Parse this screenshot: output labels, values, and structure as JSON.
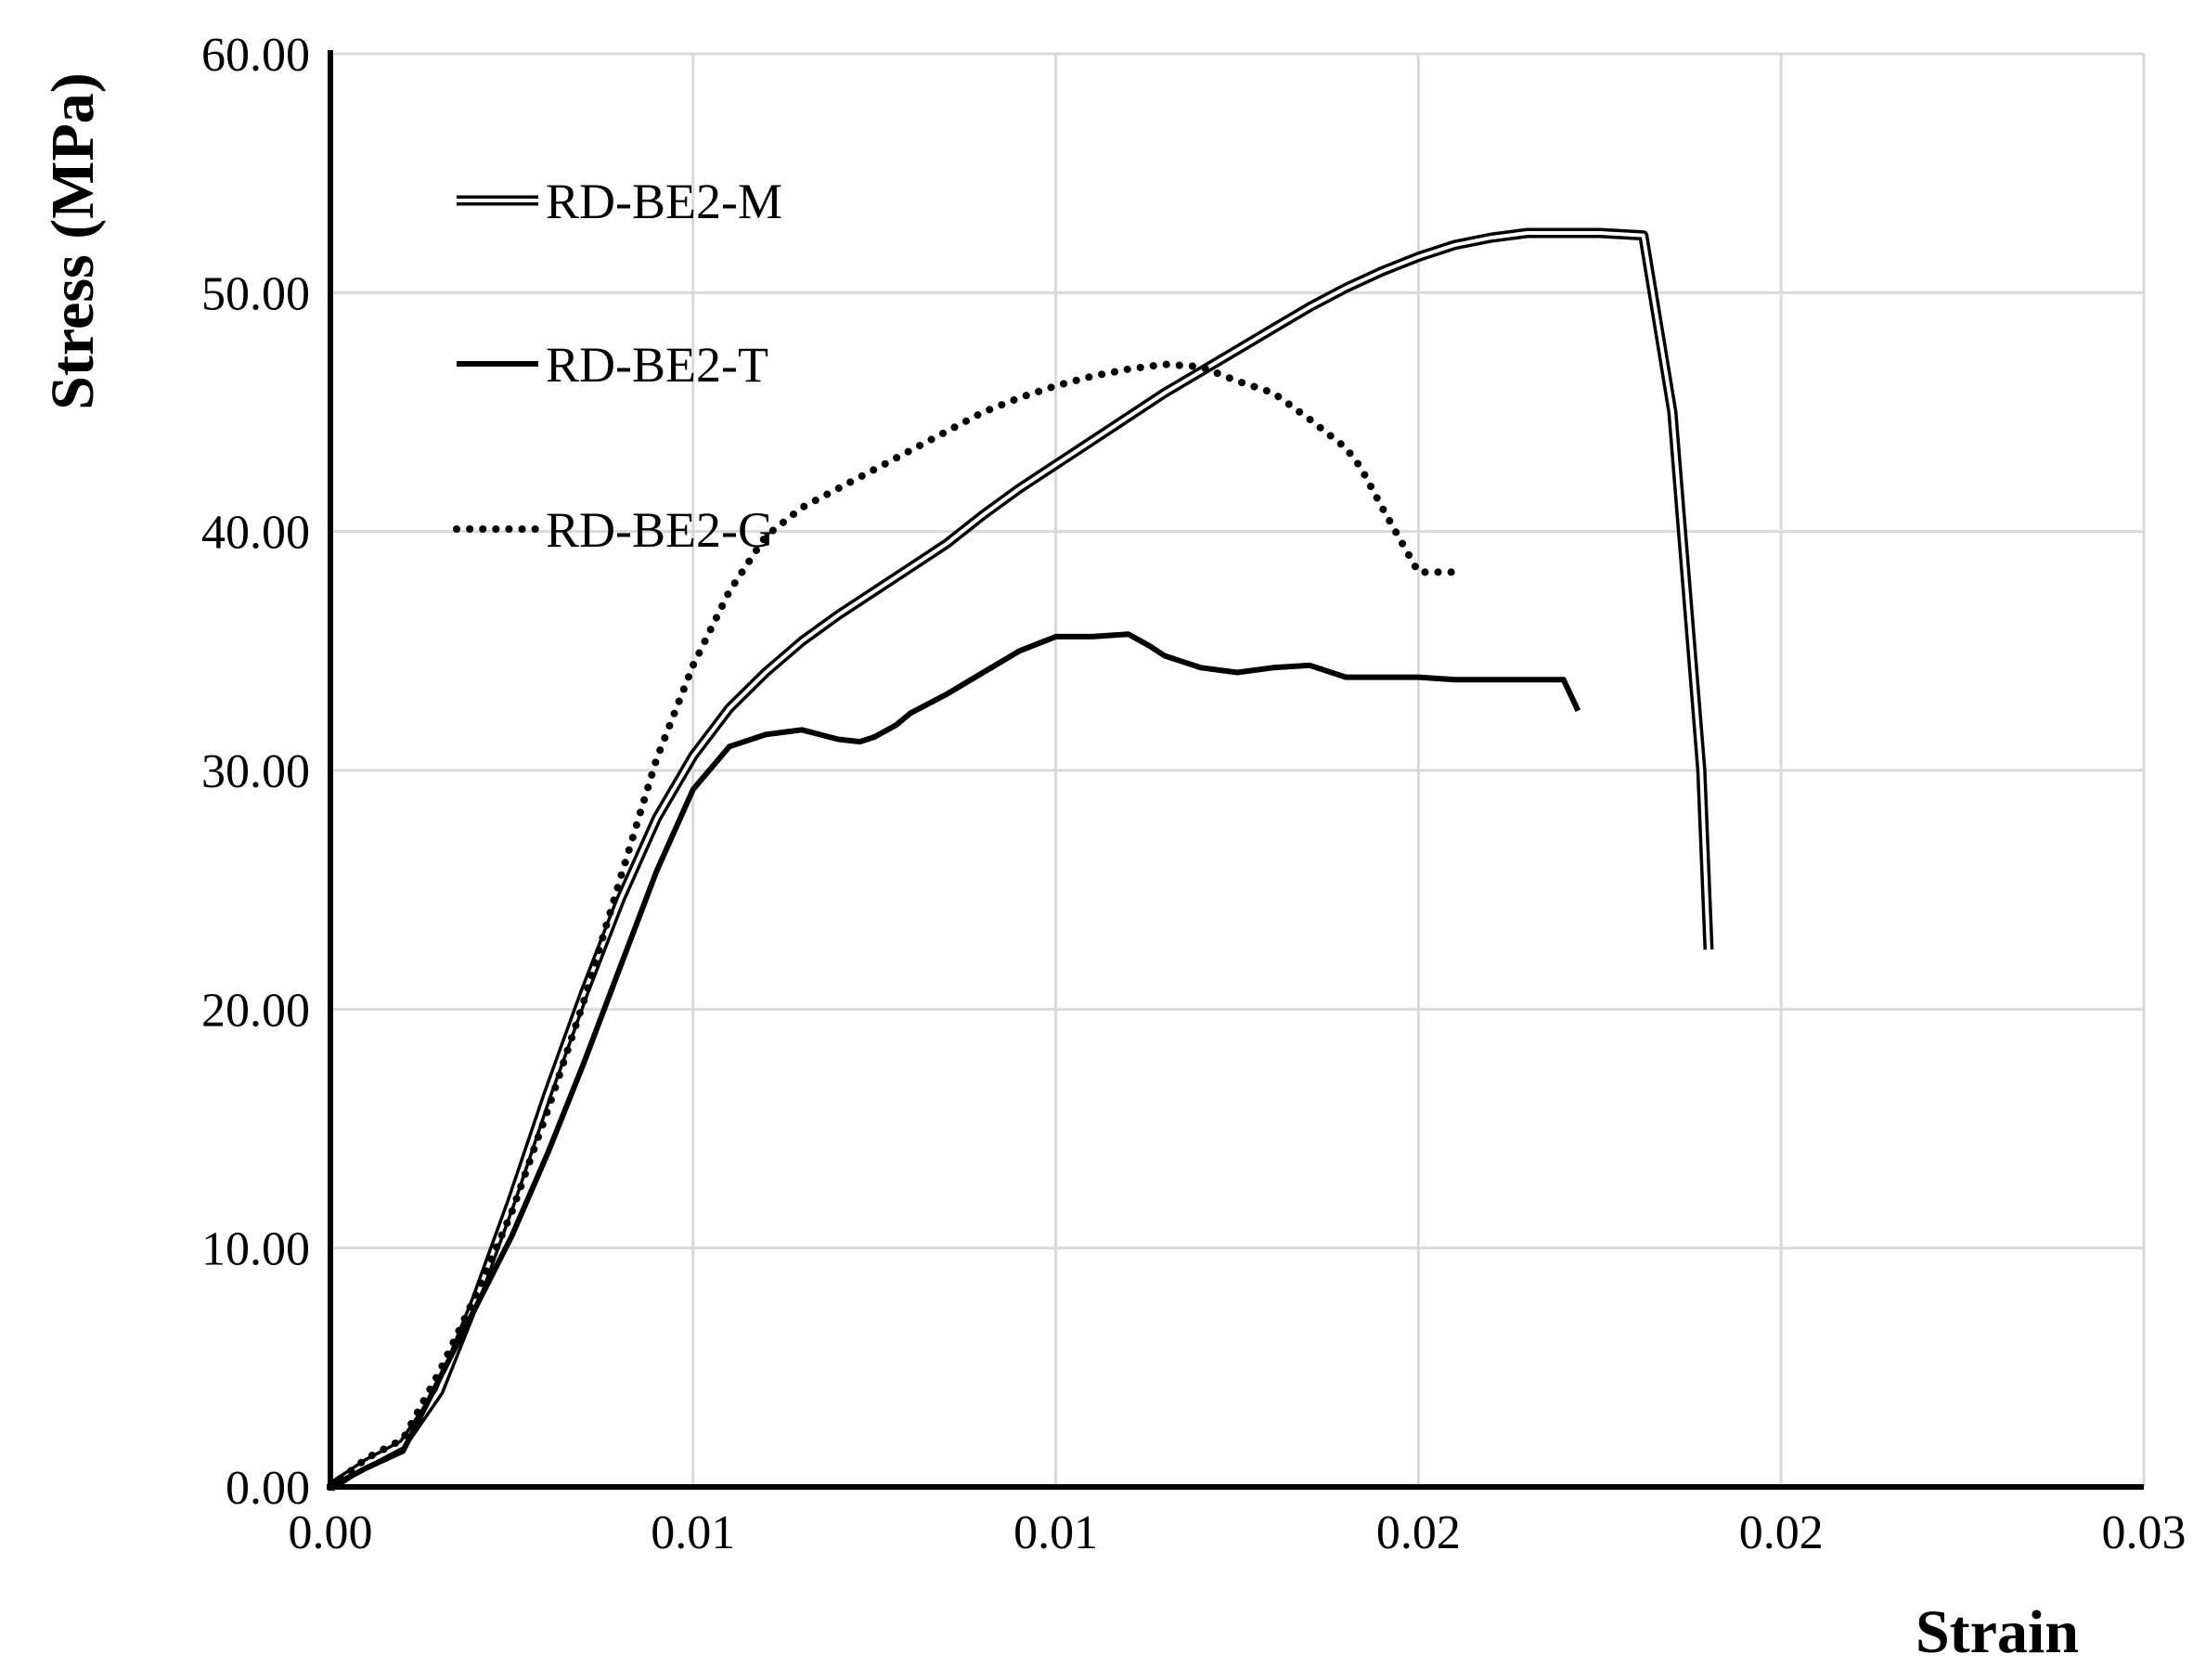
{
  "chart_data": {
    "type": "line",
    "title": "",
    "xlabel": "Strain",
    "ylabel": "Stress (MPa)",
    "xlim": [
      0,
      0.025
    ],
    "ylim": [
      0,
      60
    ],
    "x_tick_labels": [
      "0.00",
      "0.01",
      "0.01",
      "0.02",
      "0.02",
      "0.03"
    ],
    "y_tick_labels": [
      "0.00",
      "10.00",
      "20.00",
      "30.00",
      "40.00",
      "50.00",
      "60.00"
    ],
    "grid": true,
    "legend_position": "top-left",
    "series": [
      {
        "name": "RD-BE2-M",
        "style": "double",
        "x": [
          0,
          0.0005,
          0.001,
          0.0015,
          0.002,
          0.0025,
          0.003,
          0.0035,
          0.004,
          0.0045,
          0.005,
          0.0055,
          0.006,
          0.0065,
          0.007,
          0.0075,
          0.008,
          0.0085,
          0.009,
          0.0095,
          0.01,
          0.0105,
          0.011,
          0.0115,
          0.012,
          0.0125,
          0.013,
          0.0135,
          0.014,
          0.0145,
          0.015,
          0.0155,
          0.016,
          0.0165,
          0.017,
          0.0175,
          0.0181,
          0.0185,
          0.0189,
          0.019
        ],
        "y": [
          0,
          1,
          1.8,
          4,
          7.8,
          12,
          16.5,
          20.7,
          24.6,
          28,
          30.6,
          32.6,
          34.1,
          35.4,
          36.5,
          37.5,
          38.5,
          39.5,
          40.7,
          41.8,
          42.8,
          43.8,
          44.8,
          45.8,
          46.7,
          47.6,
          48.5,
          49.4,
          50.2,
          50.9,
          51.5,
          52,
          52.3,
          52.5,
          52.5,
          52.5,
          52.4,
          45,
          30,
          22.5
        ]
      },
      {
        "name": "RD-BE2-T",
        "style": "solid",
        "x": [
          0,
          0.0005,
          0.001,
          0.0015,
          0.002,
          0.0025,
          0.003,
          0.0035,
          0.004,
          0.0045,
          0.005,
          0.0055,
          0.006,
          0.0065,
          0.007,
          0.0073,
          0.0075,
          0.0078,
          0.008,
          0.0085,
          0.009,
          0.0095,
          0.01,
          0.0105,
          0.011,
          0.0113,
          0.0115,
          0.012,
          0.0125,
          0.013,
          0.0135,
          0.014,
          0.0145,
          0.015,
          0.0155,
          0.0158,
          0.016,
          0.0163,
          0.0165,
          0.0168,
          0.017,
          0.0172
        ],
        "y": [
          0,
          0.8,
          1.5,
          4.5,
          7.5,
          10.5,
          14,
          17.8,
          21.8,
          25.8,
          29.2,
          31,
          31.5,
          31.7,
          31.3,
          31.2,
          31.4,
          31.9,
          32.4,
          33.2,
          34.1,
          35,
          35.6,
          35.6,
          35.7,
          35.2,
          34.8,
          34.3,
          34.1,
          34.3,
          34.4,
          33.9,
          33.9,
          33.9,
          33.8,
          33.8,
          33.8,
          33.8,
          33.8,
          33.8,
          33.8,
          32.5
        ]
      },
      {
        "name": "RD-BE2-G",
        "style": "dotted",
        "x": [
          0,
          0.0005,
          0.001,
          0.0015,
          0.002,
          0.0025,
          0.003,
          0.0035,
          0.004,
          0.0045,
          0.005,
          0.0055,
          0.006,
          0.0065,
          0.007,
          0.0075,
          0.008,
          0.0085,
          0.009,
          0.0095,
          0.01,
          0.0105,
          0.011,
          0.0115,
          0.012,
          0.0125,
          0.013,
          0.0135,
          0.014,
          0.0142,
          0.0145,
          0.015,
          0.0152,
          0.0155
        ],
        "y": [
          0,
          1.2,
          2,
          4.8,
          8,
          11.5,
          15.8,
          20.4,
          25.5,
          30.5,
          34.4,
          37.5,
          39.8,
          41,
          41.8,
          42.6,
          43.4,
          44.2,
          45,
          45.6,
          46.1,
          46.5,
          46.8,
          47,
          46.9,
          46.3,
          45.8,
          44.7,
          43.5,
          42.7,
          41,
          38.3,
          38.3,
          38.3
        ]
      }
    ]
  }
}
